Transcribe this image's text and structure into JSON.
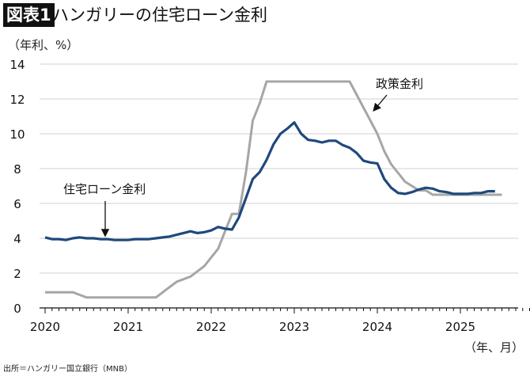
{
  "header": {
    "badge": "図表1",
    "title": "ハンガリーの住宅ローン金利"
  },
  "source": "出所＝ハンガリー国立銀行（MNB）",
  "chart_data": {
    "type": "line",
    "title": "ハンガリーの住宅ローン金利",
    "ylabel": "（年利、%）",
    "xlabel": "（年、月）",
    "ylim": [
      0,
      14
    ],
    "yticks": [
      0,
      2,
      4,
      6,
      8,
      10,
      12,
      14
    ],
    "xticks": [
      "2020",
      "2021",
      "2022",
      "2023",
      "2024",
      "2025"
    ],
    "x_start": "2020-01",
    "frequency": "monthly",
    "grid": true,
    "series": [
      {
        "name": "住宅ローン金利",
        "color": "#1f497d",
        "values": [
          4.05,
          3.95,
          3.95,
          3.9,
          4.0,
          4.05,
          4.0,
          4.0,
          3.95,
          3.95,
          3.9,
          3.9,
          3.9,
          3.95,
          3.95,
          3.95,
          4.0,
          4.05,
          4.1,
          4.2,
          4.3,
          4.4,
          4.3,
          4.35,
          4.45,
          4.65,
          4.55,
          4.5,
          5.2,
          6.3,
          7.4,
          7.8,
          8.5,
          9.4,
          10.0,
          10.3,
          10.65,
          10.0,
          9.65,
          9.6,
          9.5,
          9.6,
          9.6,
          9.35,
          9.2,
          8.9,
          8.45,
          8.35,
          8.3,
          7.4,
          6.9,
          6.6,
          6.55,
          6.65,
          6.8,
          6.9,
          6.85,
          6.7,
          6.65,
          6.55,
          6.55,
          6.55,
          6.6,
          6.6,
          6.7,
          6.7
        ]
      },
      {
        "name": "政策金利",
        "color": "#a6a6a6",
        "values": [
          0.9,
          0.9,
          0.9,
          0.9,
          0.9,
          0.75,
          0.6,
          0.6,
          0.6,
          0.6,
          0.6,
          0.6,
          0.6,
          0.6,
          0.6,
          0.6,
          0.6,
          0.9,
          1.2,
          1.5,
          1.65,
          1.8,
          2.1,
          2.4,
          2.9,
          3.4,
          4.4,
          5.4,
          5.4,
          7.75,
          10.75,
          11.75,
          13,
          13,
          13,
          13,
          13,
          13,
          13,
          13,
          13,
          13,
          13,
          13,
          13,
          12.25,
          11.5,
          10.75,
          10.0,
          9.0,
          8.25,
          7.75,
          7.25,
          7.0,
          6.75,
          6.75,
          6.5,
          6.5,
          6.5,
          6.5,
          6.5,
          6.5,
          6.5,
          6.5,
          6.5,
          6.5,
          6.5
        ]
      }
    ]
  }
}
